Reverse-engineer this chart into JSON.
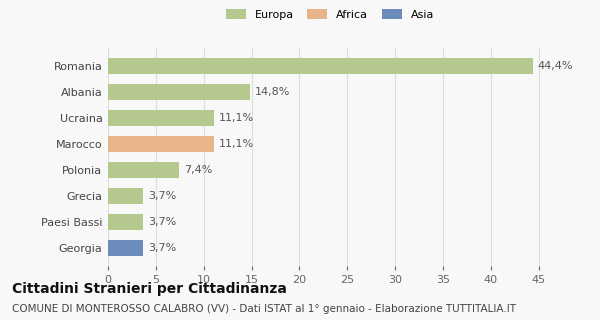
{
  "categories": [
    "Romania",
    "Albania",
    "Ucraina",
    "Marocco",
    "Polonia",
    "Grecia",
    "Paesi Bassi",
    "Georgia"
  ],
  "values": [
    44.4,
    14.8,
    11.1,
    11.1,
    7.4,
    3.7,
    3.7,
    3.7
  ],
  "labels": [
    "44,4%",
    "14,8%",
    "11,1%",
    "11,1%",
    "7,4%",
    "3,7%",
    "3,7%",
    "3,7%"
  ],
  "colors": [
    "#b5c98e",
    "#b5c98e",
    "#b5c98e",
    "#e8b48a",
    "#b5c98e",
    "#b5c98e",
    "#b5c98e",
    "#6b8cba"
  ],
  "legend_colors": {
    "Europa": "#b5c98e",
    "Africa": "#e8b48a",
    "Asia": "#6b8cba"
  },
  "xlim": [
    0,
    47
  ],
  "xticks": [
    0,
    5,
    10,
    15,
    20,
    25,
    30,
    35,
    40,
    45
  ],
  "title": "Cittadini Stranieri per Cittadinanza",
  "subtitle": "COMUNE DI MONTEROSSO CALABRO (VV) - Dati ISTAT al 1° gennaio - Elaborazione TUTTITALIA.IT",
  "background_color": "#f8f8f8",
  "bar_height": 0.6,
  "title_fontsize": 10,
  "subtitle_fontsize": 7.5,
  "label_fontsize": 8,
  "tick_fontsize": 8,
  "grid_color": "#dddddd"
}
